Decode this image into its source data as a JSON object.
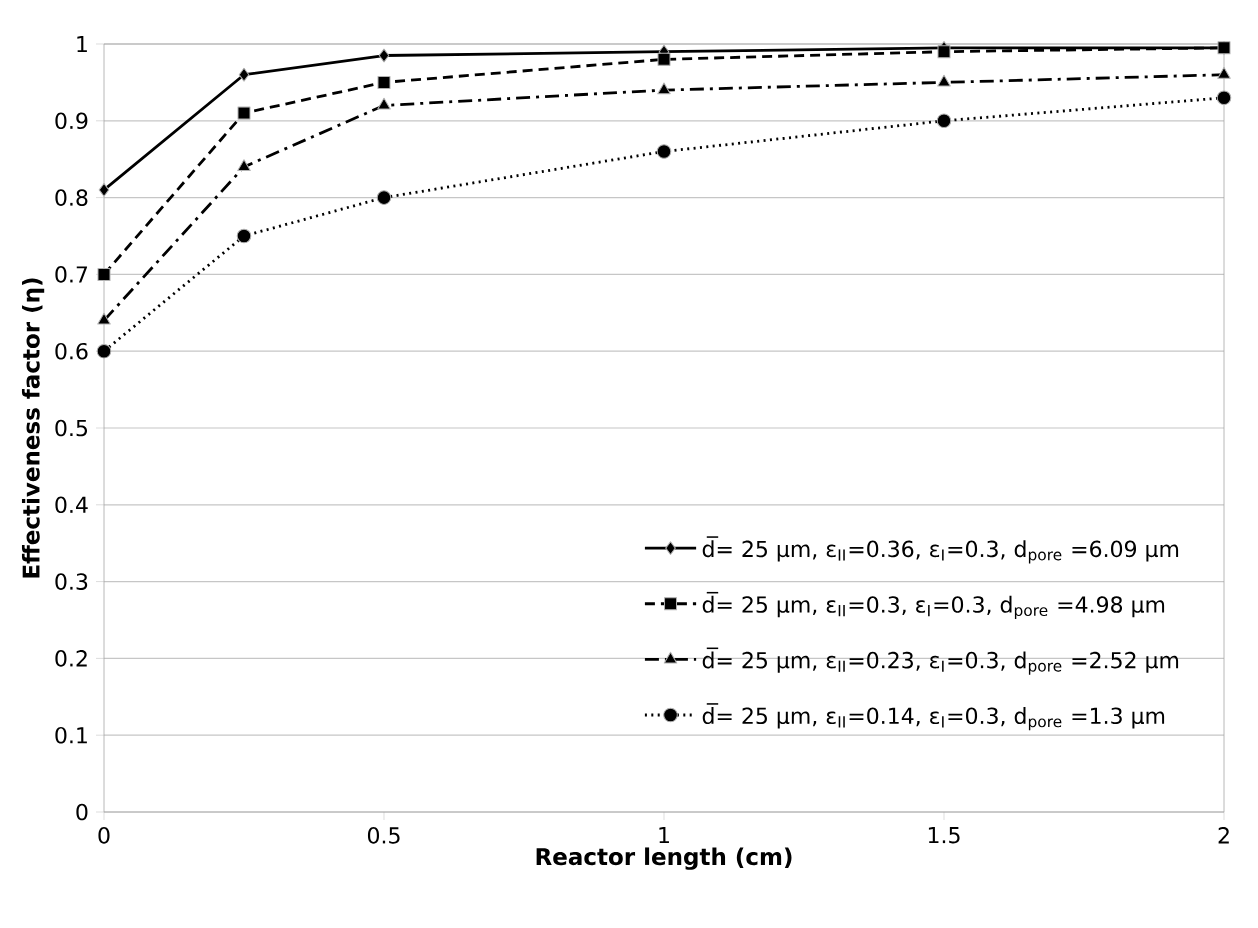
{
  "chart_data": {
    "type": "line",
    "xlabel": "Reactor length (cm)",
    "ylabel": "Effectiveness factor (η)",
    "x": [
      0,
      0.25,
      0.5,
      1,
      1.5,
      2
    ],
    "xlim": [
      0,
      2
    ],
    "xticks": [
      0,
      0.5,
      1,
      1.5,
      2
    ],
    "ylim": [
      0,
      1
    ],
    "yticks": [
      0,
      0.1,
      0.2,
      0.3,
      0.4,
      0.5,
      0.6,
      0.7,
      0.8,
      0.9,
      1
    ],
    "grid": "y",
    "legend": "bottom right",
    "series": [
      {
        "name": "d̅= 25 µm, ε$_{II}$=0.36, ε$_{I}$=0.3, d$_{pore}$ =6.09 µm",
        "color": "#000000",
        "marker": "diamond",
        "line_style": "solid",
        "values": [
          0.81,
          0.96,
          0.985,
          0.99,
          0.995,
          0.995
        ]
      },
      {
        "name": "d̅= 25 µm, ε$_{II}$=0.3, ε$_{I}$=0.3, d$_{pore}$ =4.98 µm",
        "color": "#000000",
        "marker": "square",
        "line_style": "dashed",
        "values": [
          0.7,
          0.91,
          0.95,
          0.98,
          0.99,
          0.995
        ]
      },
      {
        "name": "d̅= 25 µm, ε$_{II}$=0.23, ε$_{I}$=0.3, d$_{pore}$ =2.52 µm",
        "color": "#000000",
        "marker": "triangle",
        "line_style": "dashdot",
        "values": [
          0.64,
          0.84,
          0.92,
          0.94,
          0.95,
          0.96
        ]
      },
      {
        "name": "d̅= 25 µm, ε$_{II}$=0.14, ε$_{I}$=0.3, d$_{pore}$ =1.3 µm",
        "color": "#000000",
        "marker": "circle",
        "line_style": "dotted",
        "values": [
          0.6,
          0.75,
          0.8,
          0.86,
          0.9,
          0.93
        ]
      }
    ]
  }
}
